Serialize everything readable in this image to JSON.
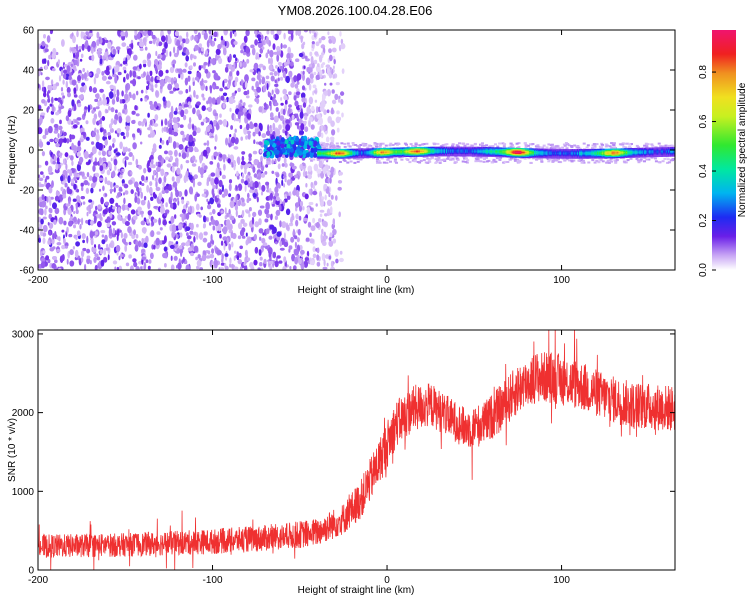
{
  "title": "YM08.2026.100.04.28.E06",
  "chart_data": [
    {
      "type": "heatmap",
      "xlabel": "Height of straight line (km)",
      "ylabel": "Frequency (Hz)",
      "xlim": [
        -200,
        165
      ],
      "ylim": [
        -60,
        60
      ],
      "xticks": [
        -200,
        -100,
        0,
        100
      ],
      "xtick_labels": [
        "-200",
        "-100",
        "0",
        "100"
      ],
      "yticks": [
        -60,
        -40,
        -20,
        0,
        20,
        40,
        60
      ],
      "ytick_labels": [
        "-60",
        "-40",
        "-20",
        "0",
        "20",
        "40",
        "60"
      ],
      "colorbar": {
        "label": "Normalized spectral amplitude",
        "range": [
          0,
          0.97
        ],
        "ticks": [
          0,
          0.2,
          0.4,
          0.6,
          0.8
        ],
        "tick_labels": [
          "0.0",
          "0.2",
          "0.4",
          "0.6",
          "0.8"
        ],
        "colormap": "rainbow (violet-blue-cyan-green-yellow-orange-red-magenta)"
      },
      "description_regions": [
        {
          "x_range": [
            -200,
            -30
          ],
          "freq_range": [
            -60,
            60
          ],
          "amplitude": "low (0.0-0.15), scattered noise"
        },
        {
          "x_range": [
            -70,
            -40
          ],
          "freq_range": [
            -3,
            5
          ],
          "amplitude": "0.2-0.4"
        },
        {
          "x_range": [
            -40,
            165
          ],
          "freq_range": [
            -3,
            1
          ],
          "amplitude": "0.3-0.9, narrow band near 0 Hz"
        }
      ],
      "band_peaks": [
        {
          "x": -27,
          "freq": 0,
          "amplitude": 0.9
        },
        {
          "x": -3,
          "freq": -2,
          "amplitude": 0.85
        },
        {
          "x": 17,
          "freq": 0,
          "amplitude": 0.75
        },
        {
          "x": 75,
          "freq": -2,
          "amplitude": 0.9
        },
        {
          "x": 130,
          "freq": -1,
          "amplitude": 0.7
        }
      ]
    },
    {
      "type": "line",
      "xlabel": "Height of straight line (km)",
      "ylabel": "SNR (10 * v/v)",
      "xlim": [
        -200,
        165
      ],
      "ylim": [
        0,
        3050
      ],
      "xticks": [
        -200,
        -100,
        0,
        100
      ],
      "xtick_labels": [
        "-200",
        "-100",
        "0",
        "100"
      ],
      "yticks": [
        0,
        1000,
        2000,
        3000
      ],
      "ytick_labels": [
        "0",
        "1000",
        "2000",
        "3000"
      ],
      "series": [
        {
          "name": "SNR",
          "color": "#ef3030",
          "trend_x": [
            -200,
            -150,
            -100,
            -60,
            -40,
            -25,
            -15,
            -5,
            5,
            15,
            25,
            35,
            45,
            55,
            65,
            75,
            85,
            95,
            110,
            125,
            140,
            165
          ],
          "trend_y": [
            300,
            320,
            360,
            420,
            480,
            650,
            900,
            1350,
            1850,
            2050,
            2100,
            1950,
            1800,
            1850,
            2050,
            2300,
            2450,
            2450,
            2350,
            2200,
            2100,
            2050
          ],
          "noise_amplitude": [
            150,
            150,
            160,
            170,
            180,
            200,
            250,
            300,
            300,
            300,
            280,
            260,
            260,
            280,
            300,
            320,
            330,
            330,
            320,
            300,
            300,
            300
          ]
        }
      ]
    }
  ]
}
